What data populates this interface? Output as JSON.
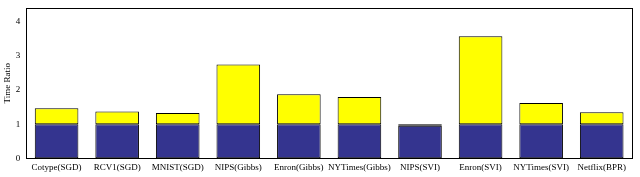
{
  "chart_data": {
    "type": "bar",
    "stacked": true,
    "y_label": "Time Ratio",
    "categories": [
      "Cotype(SGD)",
      "RCV1(SGD)",
      "MNIST(SGD)",
      "NIPS(Gibbs)",
      "Enron(Gibbs)",
      "NYTimes(Gibbs)",
      "NIPS(SVI)",
      "Enron(SVI)",
      "NYTimes(SVI)",
      "Netflix(BPR)"
    ],
    "series": [
      {
        "color": "#34348f",
        "values": [
          1,
          1,
          1,
          1,
          1,
          1,
          0.95,
          1,
          1,
          1
        ]
      },
      {
        "color": "#ffff00",
        "values": [
          0.47,
          0.37,
          0.33,
          1.75,
          0.88,
          0.8,
          0.05,
          2.58,
          0.62,
          0.35
        ]
      }
    ],
    "ylim": [
      0,
      4.4
    ],
    "yticks": [
      0,
      1,
      2,
      3,
      4
    ],
    "grid": false,
    "legend": false
  }
}
